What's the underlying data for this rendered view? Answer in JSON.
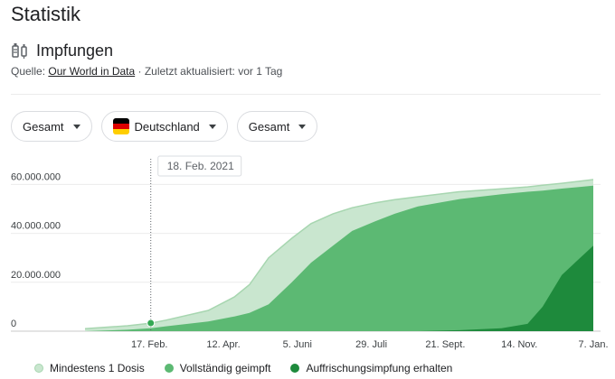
{
  "header": {
    "title": "Statistik"
  },
  "section": {
    "title": "Impfungen",
    "icon": "syringe-icon",
    "source_prefix": "Quelle: ",
    "source_link": "Our World in Data",
    "updated": " · Zuletzt aktualisiert: vor 1 Tag"
  },
  "filters": {
    "metric": "Gesamt",
    "country": "Deutschland",
    "range": "Gesamt"
  },
  "tooltip": {
    "date": "18. Feb. 2021"
  },
  "colors": {
    "dose1": "#c9e6cf",
    "dose1_line": "#a7d6b0",
    "full": "#5cb973",
    "booster": "#1e8a3c",
    "axis": "#dadce0"
  },
  "chart_data": {
    "type": "area",
    "x": [
      "2021-01-01",
      "2021-02-01",
      "2021-02-18",
      "2021-03-01",
      "2021-04-01",
      "2021-04-20",
      "2021-05-01",
      "2021-05-15",
      "2021-06-01",
      "2021-06-15",
      "2021-07-01",
      "2021-07-15",
      "2021-08-01",
      "2021-08-15",
      "2021-09-01",
      "2021-10-01",
      "2021-11-01",
      "2021-11-20",
      "2021-12-01",
      "2021-12-15",
      "2022-01-07"
    ],
    "x_tick_labels": [
      "17. Feb.",
      "12. Apr.",
      "5. Juni",
      "29. Juli",
      "21. Sept.",
      "14. Nov.",
      "7. Jan."
    ],
    "x_ticks": [
      "2021-02-17",
      "2021-04-12",
      "2021-06-05",
      "2021-07-29",
      "2021-09-21",
      "2021-11-14",
      "2022-01-07"
    ],
    "y_tick_labels": [
      "0",
      "20.000.000",
      "40.000.000",
      "60.000.000"
    ],
    "y_ticks": [
      0,
      20000000,
      40000000,
      60000000
    ],
    "ylim": [
      0,
      62000000
    ],
    "legend_position": "bottom",
    "highlight_x": "2021-02-18",
    "highlight_y": 3300000,
    "series": [
      {
        "name": "Mindestens 1 Dosis",
        "values": [
          1000000,
          2200000,
          3300000,
          4500000,
          8500000,
          14000000,
          19000000,
          30000000,
          38000000,
          44000000,
          48000000,
          50500000,
          52500000,
          53800000,
          55000000,
          57000000,
          58200000,
          59000000,
          59700000,
          60500000,
          62000000
        ]
      },
      {
        "name": "Vollständig geimpft",
        "values": [
          0,
          600000,
          1200000,
          2000000,
          4000000,
          6000000,
          7500000,
          11000000,
          20000000,
          28000000,
          35000000,
          41000000,
          45000000,
          48000000,
          51000000,
          54000000,
          56000000,
          57000000,
          57500000,
          58300000,
          59500000
        ]
      },
      {
        "name": "Auffrischungsimpfung erhalten",
        "values": [
          0,
          0,
          0,
          0,
          0,
          0,
          0,
          0,
          0,
          0,
          0,
          0,
          0,
          0,
          0,
          400000,
          1200000,
          3000000,
          10000000,
          23000000,
          35000000
        ]
      }
    ]
  }
}
